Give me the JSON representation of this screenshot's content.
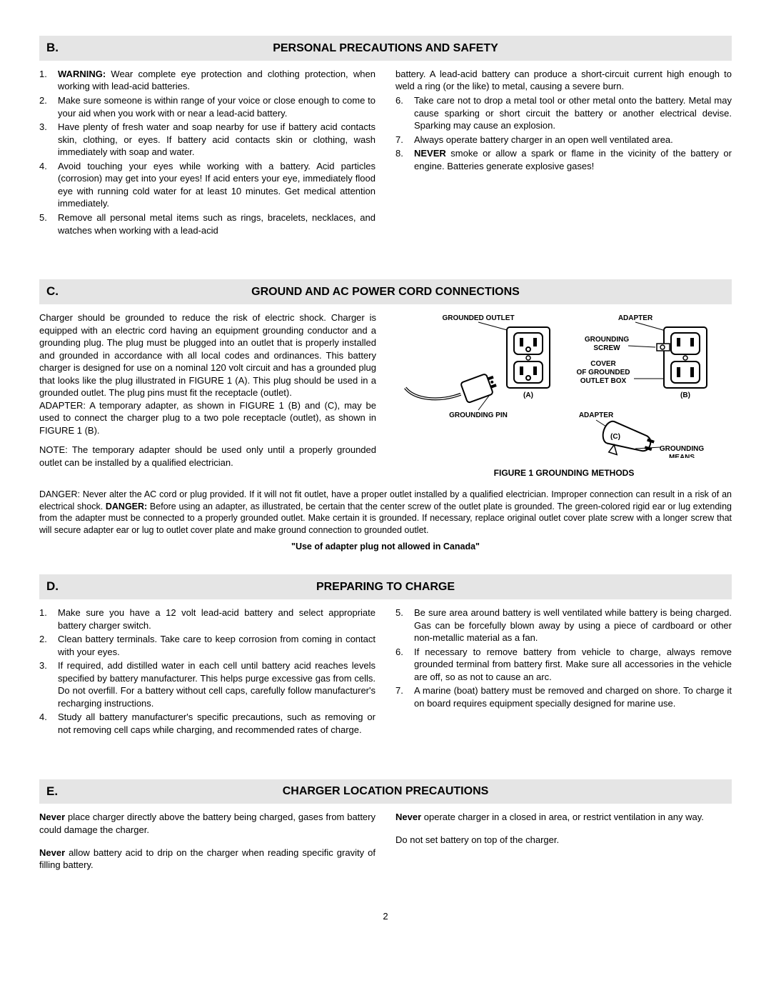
{
  "page_number": "2",
  "sections": {
    "B": {
      "letter": "B.",
      "title": "PERSONAL PRECAUTIONS AND SAFETY",
      "items": [
        {
          "bold": "WARNING:",
          "text": " Wear complete eye protection and clothing protection, when working with lead-acid batteries."
        },
        {
          "text": "Make sure someone is within range of your voice or close enough to come to your aid when you work with or near a lead-acid battery."
        },
        {
          "text": "Have plenty of fresh water and soap nearby for use if battery acid contacts skin, clothing, or eyes. If battery acid contacts skin or clothing, wash immediately with soap and water."
        },
        {
          "text": "Avoid touching your eyes while working with a battery. Acid particles (corrosion) may get into your eyes! If acid enters your eye, immediately flood eye with running cold water for at least 10 minutes. Get medical attention immediately."
        },
        {
          "text": "Remove all personal metal items such as rings, bracelets, necklaces, and watches when working with a lead-acid battery. A lead-acid battery can produce a short-circuit current high enough to weld a ring (or the like) to metal, causing a severe burn."
        },
        {
          "text": "Take care not to drop a metal tool or other metal onto the battery. Metal may cause sparking or short circuit the battery or another electrical devise. Sparking may cause an explosion."
        },
        {
          "text": "Always operate battery charger in an open well ventilated area."
        },
        {
          "bold": "NEVER",
          "text": " smoke or allow a spark or flame in the vicinity of the battery or engine. Batteries generate explosive gases!"
        }
      ]
    },
    "C": {
      "letter": "C.",
      "title": "GROUND AND AC POWER CORD CONNECTIONS",
      "p1": "Charger should be grounded to reduce the risk of electric shock. Charger is equipped with an electric cord having an equipment grounding conductor and a grounding plug. The plug must be plugged into an outlet that is properly installed and grounded in accordance with all local codes and ordinances. This battery charger is designed for use on a nominal 120 volt circuit and has a grounded plug that looks like the plug illustrated in FIGURE 1 (A). This plug should be used in a grounded outlet. The plug pins must fit the receptacle (outlet).",
      "p2": "ADAPTER: A temporary adapter, as shown in FIGURE 1 (B) and (C), may be used to connect the charger plug to a two pole receptacle (outlet), as shown in FIGURE 1 (B).",
      "p3": "NOTE: The temporary adapter should be used only until a properly grounded outlet can be installed by a qualified electrician.",
      "figure_caption": "FIGURE 1 GROUNDING METHODS",
      "labels": {
        "grounded_outlet": "GROUNDED OUTLET",
        "adapter": "ADAPTER",
        "grounding_screw": "GROUNDING\nSCREW",
        "cover": "COVER\nOF GROUNDED\nOUTLET BOX",
        "a": "(A)",
        "b": "(B)",
        "c": "(C)",
        "grounding_pin": "GROUNDING PIN",
        "adapter2": "ADAPTER",
        "grounding_means": "GROUNDING\nMEANS"
      },
      "danger_pre": "DANGER: Never alter the AC cord or plug provided. If it will not fit outlet, have a proper outlet installed by a qualified electrician. Improper connection can result in a risk of an electrical shock. ",
      "danger_bold": "DANGER:",
      "danger_post": " Before using an adapter, as illustrated, be certain that the center screw of the outlet plate is grounded. The green-colored rigid ear or lug extending from the adapter must be connected to a properly grounded outlet. Make certain it is grounded. If necessary, replace original outlet cover plate screw with a longer screw that will secure adapter ear or lug to outlet cover plate and make ground connection to grounded outlet.",
      "canada_note": "\"Use of adapter plug not allowed in Canada\""
    },
    "D": {
      "letter": "D.",
      "title": "PREPARING TO CHARGE",
      "items": [
        {
          "text": "Make sure you have a 12 volt lead-acid battery and select appropriate battery charger switch."
        },
        {
          "text": "Clean battery terminals. Take care to keep corrosion from coming in contact with your eyes."
        },
        {
          "text": "If required, add distilled water in each cell until battery acid reaches levels specified by battery manufacturer. This helps purge excessive gas from cells. Do not overfill. For a battery without cell caps, carefully follow manufacturer's recharging instructions."
        },
        {
          "text": "Study all battery manufacturer's specific precautions, such as removing or not removing cell caps while charging, and recommended rates of charge."
        },
        {
          "text": "Be sure area around battery is well ventilated while battery is being charged. Gas can be forcefully blown away by using a piece of cardboard or other non-metallic material as a fan."
        },
        {
          "text": "If necessary to remove battery from vehicle to charge, always remove grounded terminal from battery first. Make sure all accessories in the vehicle are off, so as not to cause an arc."
        },
        {
          "text": "A marine (boat) battery must be removed and charged on shore. To charge it on board requires equipment specially designed for marine use."
        }
      ]
    },
    "E": {
      "letter": "E.",
      "title": "CHARGER LOCATION PRECAUTIONS",
      "left": [
        {
          "bold": "Never",
          "text": " place charger directly above the battery being charged, gases from battery could damage the charger."
        },
        {
          "bold": "Never",
          "text": " allow battery acid to drip on the charger when reading specific gravity of filling battery."
        }
      ],
      "right": [
        {
          "bold": "Never",
          "text": " operate charger in a closed in area, or restrict ventilation in any way."
        },
        {
          "text": "Do not set battery on top of the charger."
        }
      ]
    }
  }
}
